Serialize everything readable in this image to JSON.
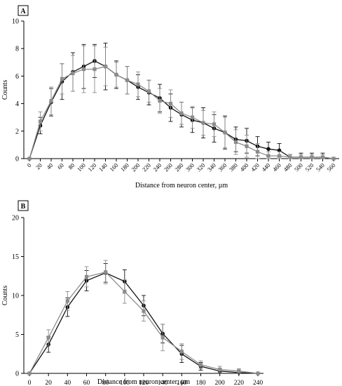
{
  "chart_data": [
    {
      "type": "line",
      "panel_label": "A",
      "xlabel": "Distance from neuron center, µm",
      "ylabel": "Counts",
      "ylim": [
        0,
        10
      ],
      "yticks": [
        0,
        2,
        4,
        6,
        8,
        10
      ],
      "x": [
        0,
        20,
        40,
        60,
        80,
        100,
        120,
        140,
        160,
        180,
        200,
        220,
        240,
        260,
        280,
        300,
        320,
        340,
        360,
        380,
        400,
        420,
        440,
        460,
        480,
        500,
        520,
        540,
        560
      ],
      "grid": false,
      "series": [
        {
          "color": "#111111",
          "marker": "circle",
          "values": [
            0,
            2.4,
            4.1,
            5.6,
            6.3,
            6.7,
            7.1,
            6.7,
            6.1,
            5.7,
            5.2,
            4.8,
            4.4,
            3.7,
            3.2,
            2.8,
            2.6,
            2.2,
            1.9,
            1.4,
            1.3,
            0.9,
            0.7,
            0.6,
            0.1,
            0.1,
            0.1,
            0.1,
            0
          ],
          "errors": [
            0,
            0.6,
            1.0,
            1.3,
            1.4,
            1.6,
            1.2,
            1.7,
            1.0,
            1.0,
            0.9,
            0.9,
            1.0,
            1.0,
            0.9,
            0.9,
            1.1,
            1.0,
            1.2,
            0.9,
            0.9,
            0.7,
            0.5,
            0.5,
            0.2,
            0.3,
            0.3,
            0.3,
            0
          ]
        },
        {
          "color": "#8c8c8c",
          "marker": "square",
          "values": [
            0,
            2.7,
            4.2,
            5.8,
            6.2,
            6.5,
            6.5,
            6.7,
            6.1,
            5.7,
            5.4,
            4.9,
            4.2,
            4.0,
            3.3,
            3.0,
            2.6,
            2.5,
            1.9,
            1.2,
            0.9,
            0.5,
            0.2,
            0.2,
            0.1,
            0.1,
            0.1,
            0.1,
            0
          ],
          "errors": [
            0,
            0.7,
            1.0,
            1.1,
            1.3,
            1.7,
            1.7,
            1.4,
            0.9,
            1.0,
            0.9,
            0.8,
            0.9,
            1.0,
            0.8,
            0.8,
            0.9,
            0.9,
            1.1,
            0.9,
            0.8,
            0.6,
            0.3,
            0.3,
            0.2,
            0.2,
            0.2,
            0.2,
            0
          ]
        }
      ]
    },
    {
      "type": "line",
      "panel_label": "B",
      "xlabel": "Distance from neuron center, µm",
      "ylabel": "Counts",
      "ylim": [
        0,
        20
      ],
      "yticks": [
        0,
        5,
        10,
        15,
        20
      ],
      "x": [
        0,
        20,
        40,
        60,
        80,
        100,
        120,
        140,
        160,
        180,
        200,
        220,
        240
      ],
      "grid": false,
      "series": [
        {
          "color": "#111111",
          "marker": "circle",
          "values": [
            0,
            3.7,
            8.5,
            11.9,
            12.9,
            11.8,
            8.7,
            5.1,
            2.5,
            0.9,
            0.3,
            0.1,
            0
          ],
          "errors": [
            0,
            1.0,
            1.2,
            1.3,
            1.2,
            1.5,
            1.3,
            1.2,
            1.1,
            0.5,
            0.3,
            0.2,
            0
          ]
        },
        {
          "color": "#8c8c8c",
          "marker": "square",
          "values": [
            0,
            4.6,
            9.3,
            12.4,
            13.0,
            10.5,
            8.0,
            4.6,
            2.8,
            1.1,
            0.5,
            0.3,
            0
          ],
          "errors": [
            0,
            1.0,
            1.2,
            1.3,
            1.5,
            1.5,
            1.3,
            1.7,
            1.0,
            0.5,
            0.4,
            0.3,
            0
          ]
        }
      ]
    }
  ]
}
